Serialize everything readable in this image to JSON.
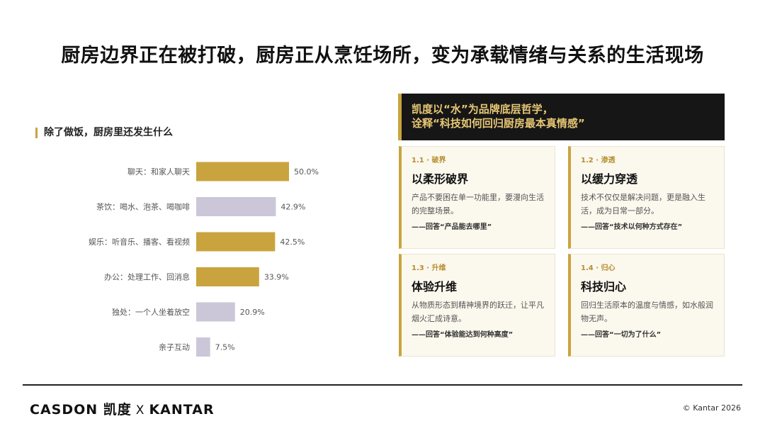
{
  "title": "厨房边界正在被打破，厨房正从烹饪场所，变为承载情绪与关系的生活现场",
  "colors": {
    "gold": "#c9a43e",
    "lavender": "#cbc7d8",
    "dark": "#161616"
  },
  "chart_data": {
    "type": "bar",
    "orientation": "horizontal",
    "title": "除了做饭，厨房里还发生什么",
    "categories": [
      "聊天：和家人聊天",
      "茶饮：喝水、泡茶、喝咖啡",
      "娱乐：听音乐、播客、看视频",
      "办公：处理工作、回消息",
      "独处：一个人坐着放空",
      "亲子互动"
    ],
    "values": [
      50.0,
      42.9,
      42.5,
      33.9,
      20.9,
      7.5
    ],
    "value_labels": [
      "50.0%",
      "42.9%",
      "42.5%",
      "33.9%",
      "20.9%",
      "7.5%"
    ],
    "bar_colors": [
      "#c9a43e",
      "#cbc7d8",
      "#c9a43e",
      "#c9a43e",
      "#cbc7d8",
      "#cbc7d8"
    ],
    "xlim": [
      0,
      50
    ],
    "unit": "%",
    "grid": false,
    "legend": "none"
  },
  "panel": {
    "header_line1": "凯度以“水”为品牌底层哲学，",
    "header_line2": "诠释“科技如何回归厨房最本真情感”",
    "cards": [
      {
        "tag": "1.1 · 破界",
        "title": "以柔形破界",
        "body": "产品不要困在单一功能里，要漫向生活的完整场景。",
        "answer": "——回答“产品能去哪里”"
      },
      {
        "tag": "1.2 · 渗透",
        "title": "以缓力穿透",
        "body": "技术不仅仅是解决问题，更是融入生活，成为日常一部分。",
        "answer": "——回答“技术以何种方式存在”"
      },
      {
        "tag": "1.3 · 升维",
        "title": "体验升维",
        "body": "从物质形态到精神境界的跃迁，让平凡烟火汇成诗意。",
        "answer": "——回答“体验能达到何种高度”"
      },
      {
        "tag": "1.4 · 归心",
        "title": "科技归心",
        "body": "回归生活原本的温度与情感，如水般润物无声。",
        "answer": "——回答“一切为了什么”"
      }
    ]
  },
  "footer": {
    "brand_left": "CASDON 凯度",
    "brand_sep": "X",
    "brand_right": "KANTAR",
    "copyright": "© Kantar 2026"
  }
}
